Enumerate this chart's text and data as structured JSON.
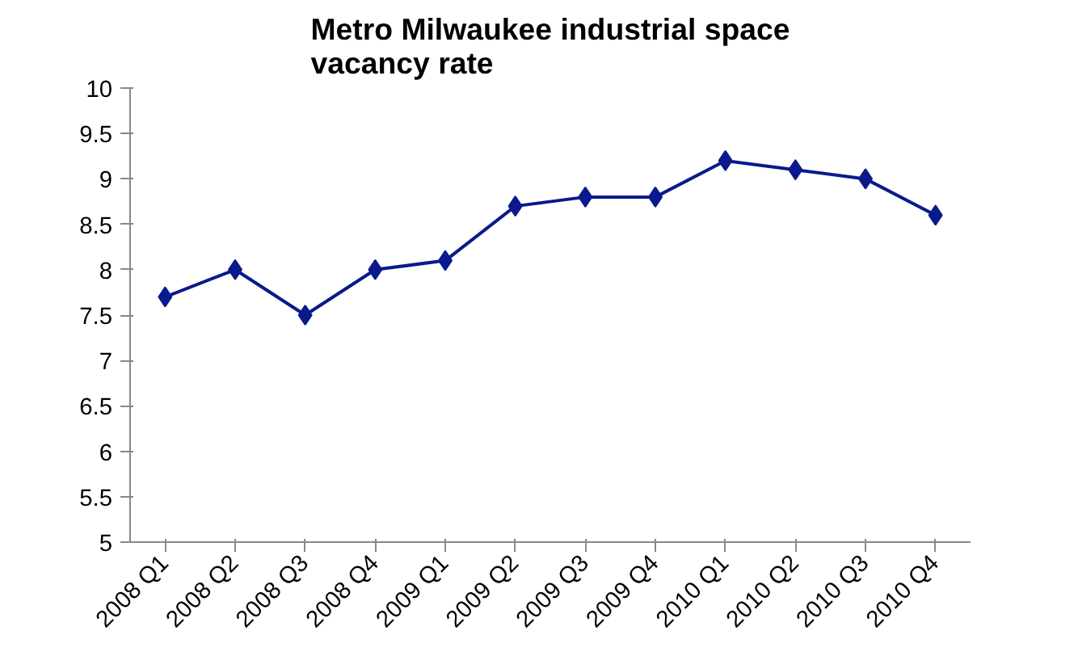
{
  "chart_data": {
    "type": "line",
    "title": "Metro Milwaukee industrial space vacancy rate",
    "categories": [
      "2008 Q1",
      "2008 Q2",
      "2008 Q3",
      "2008 Q4",
      "2009 Q1",
      "2009 Q2",
      "2009 Q3",
      "2009 Q4",
      "2010 Q1",
      "2010 Q2",
      "2010 Q3",
      "2010 Q4"
    ],
    "series": [
      {
        "color": "#0a1a8c",
        "values": [
          7.7,
          8.0,
          7.5,
          8.0,
          8.1,
          8.7,
          8.8,
          8.8,
          9.2,
          9.1,
          9.0,
          8.6
        ]
      }
    ],
    "ylim": [
      5,
      10
    ],
    "yticks": [
      5,
      5.5,
      6,
      6.5,
      7,
      7.5,
      8,
      8.5,
      9,
      9.5,
      10
    ],
    "marker": "diamond",
    "grid": false
  }
}
